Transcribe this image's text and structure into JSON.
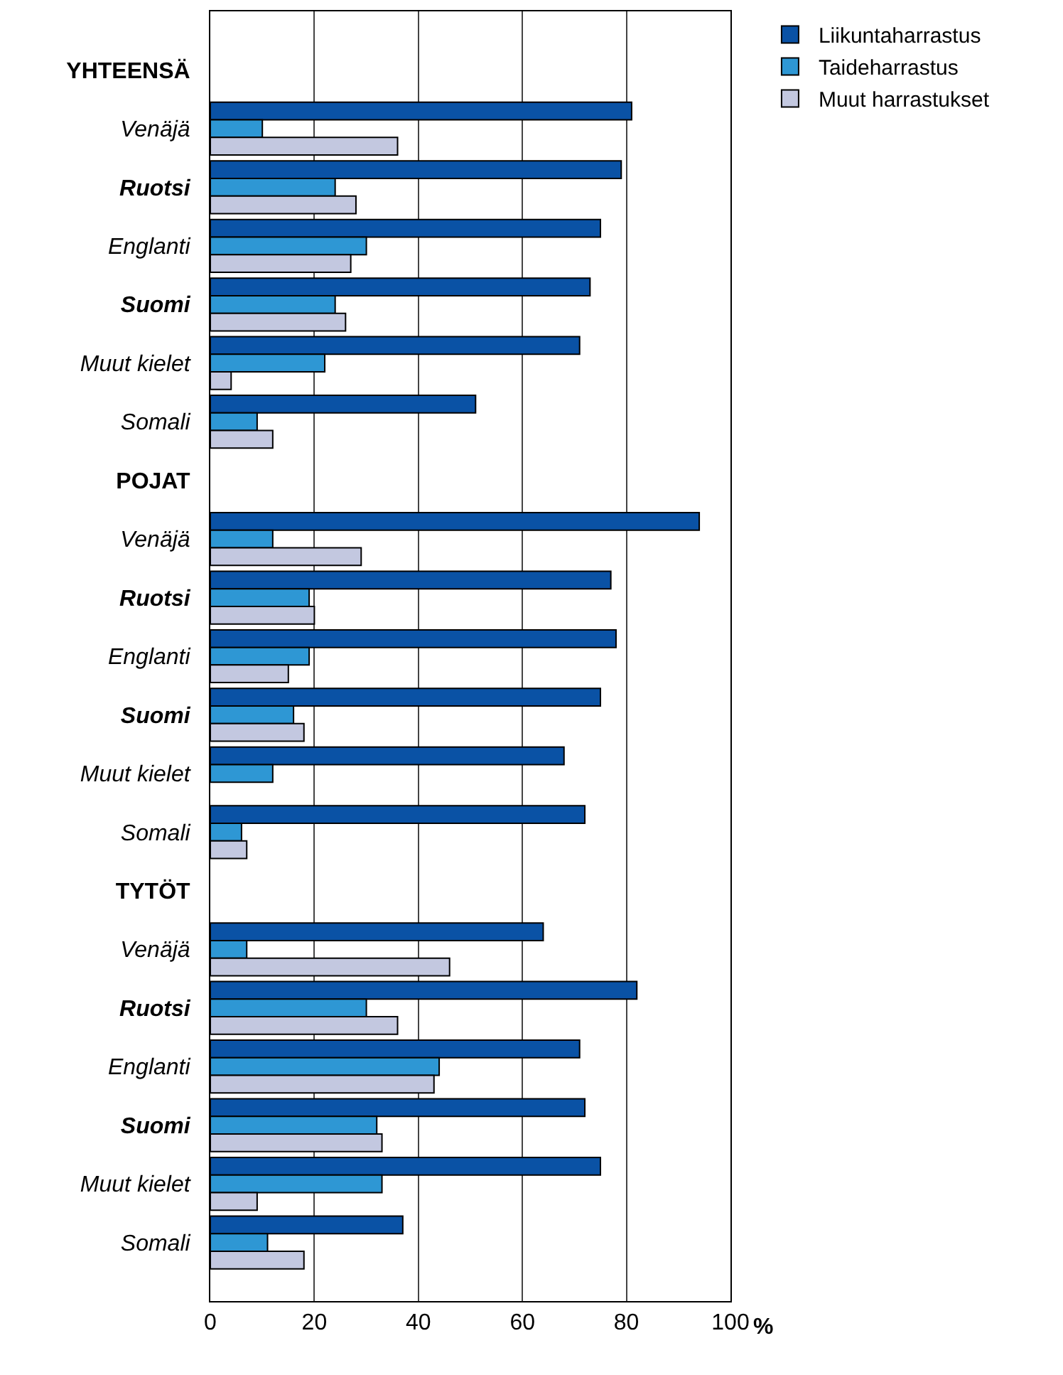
{
  "chart_data": {
    "type": "bar",
    "orientation": "horizontal",
    "xlabel": "%",
    "categories": [
      "YHTEENSÄ",
      "Venäjä",
      "Ruotsi",
      "Englanti",
      "Suomi",
      "Muut kielet",
      "Somali",
      "POJAT",
      "Venäjä",
      "Ruotsi",
      "Englanti",
      "Suomi",
      "Muut kielet",
      "Somali",
      "TYTÖT",
      "Venäjä",
      "Ruotsi",
      "Englanti",
      "Suomi",
      "Muut kielet",
      "Somali"
    ],
    "series": [
      {
        "name": "Liikuntaharrastus",
        "color": "#0a52a5",
        "values": [
          null,
          81,
          79,
          75,
          73,
          71,
          51,
          null,
          94,
          77,
          78,
          75,
          68,
          72,
          null,
          64,
          82,
          71,
          72,
          75,
          37
        ]
      },
      {
        "name": "Taideharrastus",
        "color": "#2e97d4",
        "values": [
          null,
          10,
          24,
          30,
          24,
          22,
          9,
          null,
          12,
          19,
          19,
          16,
          12,
          6,
          null,
          7,
          30,
          44,
          32,
          33,
          11
        ]
      },
      {
        "name": "Muut harrastukset",
        "color": "#c3c8e0",
        "values": [
          null,
          36,
          28,
          27,
          26,
          4,
          12,
          null,
          29,
          20,
          15,
          18,
          null,
          7,
          null,
          46,
          36,
          43,
          33,
          9,
          18
        ]
      }
    ],
    "xlim": [
      0,
      100
    ],
    "xticks": [
      0,
      20,
      40,
      60,
      80,
      100
    ],
    "grid": "x",
    "legend": "top right"
  }
}
